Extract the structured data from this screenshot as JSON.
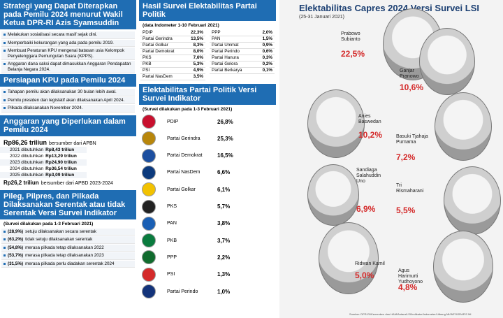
{
  "left": {
    "sections": [
      {
        "title": "Strategi yang Dapat Diterapkan pada Pemilu 2024 menurut Wakil Ketua DPR-RI Azis Syamsuddin",
        "items": [
          "Melakukan sosialisasi secara masif sejak dini.",
          "Memperbaiki kekurangan yang ada pada pemilu 2019.",
          "Membuat Peraturan KPU mengenai batasan usia Kelompok Penyelenggara Pemungutan Suara (KPPS).",
          "Anggaran dana saksi dapat dimasukkan Anggaran Pendapatan Belanja Negara 2024."
        ]
      },
      {
        "title": "Persiapan KPU pada Pemilu 2024",
        "items": [
          "Tahapan pemilu akan dilaksanakan 30 bulan lebih awal.",
          "Pemilu presiden dan legislatif akan dilaksanakan April 2024.",
          "Pilkada dilaksanakan November 2024."
        ]
      }
    ],
    "budget": {
      "title": "Anggaran yang Diperlukan dalam Pemilu 2024",
      "main": {
        "amount": "Rp86,26 triliun",
        "source": "bersumber dari APBN"
      },
      "years": [
        {
          "year": "2021 dibutuhkan",
          "amount": "Rp8,43 triliun"
        },
        {
          "year": "2022 dibutuhkan",
          "amount": "Rp13,29 triliun"
        },
        {
          "year": "2023 dibutuhkan",
          "amount": "Rp24,90 triliun"
        },
        {
          "year": "2024 dibutuhkan",
          "amount": "Rp36,54 triliun"
        },
        {
          "year": "2025 dibutuhkan",
          "amount": "Rp3,09 triliun"
        }
      ],
      "second": {
        "amount": "Rp26,2 triliun",
        "source": "bersumber dari APBD 2023-2024"
      }
    },
    "poll": {
      "title": "Pileg, Pilpres, dan Pilkada Dilaksanakan Serentak atau tidak Serentak Versi Survei Indikator",
      "subtitle": "(Survei dilakukan pada 1-3 Februari 2021)",
      "items": [
        {
          "pct": "(28,9%)",
          "text": "setuju dilaksanakan secara serentak"
        },
        {
          "pct": "(63,2%)",
          "text": "tidak setuju dilaksanakan serentak"
        },
        {
          "pct": "(54,8%)",
          "text": "merasa pilkada tetap dilaksanakan 2022"
        },
        {
          "pct": "(53,7%)",
          "text": "merasa pilkada tetap dilaksanakan 2023"
        },
        {
          "pct": "(31,5%)",
          "text": "merasa pilkada perlu diadakan serentak 2024"
        }
      ]
    }
  },
  "middle": {
    "indometer": {
      "title": "Hasil Survei Elektabilitas Partai Politik",
      "subtitle": "(data Indometer 1-10 Februari 2021)",
      "left": [
        [
          "PDIP",
          "22,3%"
        ],
        [
          "Partai Gerindra",
          "13,5%"
        ],
        [
          "Partai Golkar",
          "8,3%"
        ],
        [
          "Partai Demokrat",
          "8,0%"
        ],
        [
          "PKS",
          "7,6%"
        ],
        [
          "PKB",
          "5,3%"
        ],
        [
          "PSI",
          "4,9%"
        ],
        [
          "Partai NasDem",
          "3,5%"
        ]
      ],
      "right": [
        [
          "PPP",
          "2,0%"
        ],
        [
          "PAN",
          "1,5%"
        ],
        [
          "Partai Ummat",
          "0,9%"
        ],
        [
          "Partai Perindo",
          "0,6%"
        ],
        [
          "Partai Hanura",
          "0,3%"
        ],
        [
          "Partai Gelora",
          "0,2%"
        ],
        [
          "Partai Berkarya",
          "0,1%"
        ]
      ]
    },
    "indikator": {
      "title": "Elektabilitas Partai Politik Versi Survei Indikator",
      "subtitle": "(Survei dilakukan pada 1-3 Februari 2021)",
      "rows": [
        [
          "PDIP",
          "26,8%"
        ],
        [
          "Partai Gerindra",
          "25,3%"
        ],
        [
          "Partai Demokrat",
          "16,5%"
        ],
        [
          "Partai NasDem",
          "6,6%"
        ],
        [
          "Partai Golkar",
          "6,1%"
        ],
        [
          "PKS",
          "5,7%"
        ],
        [
          "PAN",
          "3,8%"
        ],
        [
          "PKB",
          "3,7%"
        ],
        [
          "PPP",
          "2,2%"
        ],
        [
          "PSI",
          "1,3%"
        ],
        [
          "Partai Perindo",
          "1,0%"
        ]
      ]
    }
  },
  "right": {
    "title": "Elektabilitas Capres 2024 Versi Survei LSI",
    "subtitle": "(25-31 Januari 2021)",
    "candidates": [
      [
        "Prabowo Subianto",
        "22,5%"
      ],
      [
        "Ganjar Pranowo",
        "10,6%"
      ],
      [
        "Anies Baswedan",
        "10,2%"
      ],
      [
        "Basuki Tjahaja Purnama",
        "7,2%"
      ],
      [
        "Sandiaga Salahuddin Uno",
        "6,9%"
      ],
      [
        "Tri Rismaharani",
        "5,5%"
      ],
      [
        "Ridwan Kamil",
        "5,0%"
      ],
      [
        "Agus Harimurti Yudhoyono",
        "4,8%"
      ]
    ],
    "source": "Sumber: DPR-RI/Kemenkeu dan HAM/Antara/LSI/Indikator/Indometer/Litbang MI/INFOGRAFIS MI"
  }
}
